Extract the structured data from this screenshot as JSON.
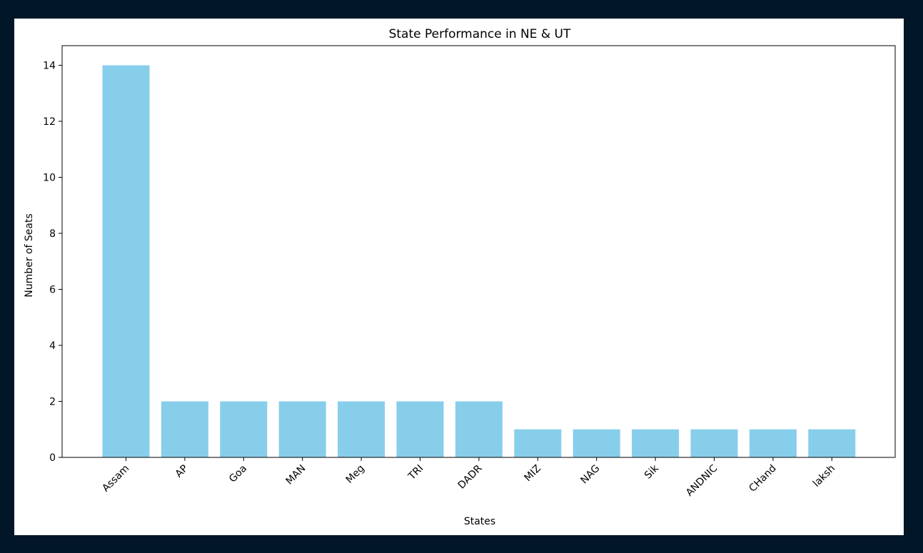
{
  "colors": {
    "background": "#011627",
    "figure": "#ffffff",
    "bar": "#87ceeb",
    "axis": "#000000"
  },
  "chart_data": {
    "type": "bar",
    "title": "State Performance in NE & UT",
    "xlabel": "States",
    "ylabel": "Number of Seats",
    "categories": [
      "Assam",
      "AP",
      "Goa",
      "MAN",
      "Meg",
      "TRI",
      "DADR",
      "MIZ",
      "NAG",
      "Sik",
      "ANDNIC",
      "CHand",
      "laksh"
    ],
    "values": [
      14,
      2,
      2,
      2,
      2,
      2,
      2,
      1,
      1,
      1,
      1,
      1,
      1
    ],
    "ylim": [
      0,
      14.7
    ],
    "yticks": [
      0,
      2,
      4,
      6,
      8,
      10,
      12,
      14
    ],
    "xtick_rotation": 45,
    "grid": false,
    "legend": false
  }
}
